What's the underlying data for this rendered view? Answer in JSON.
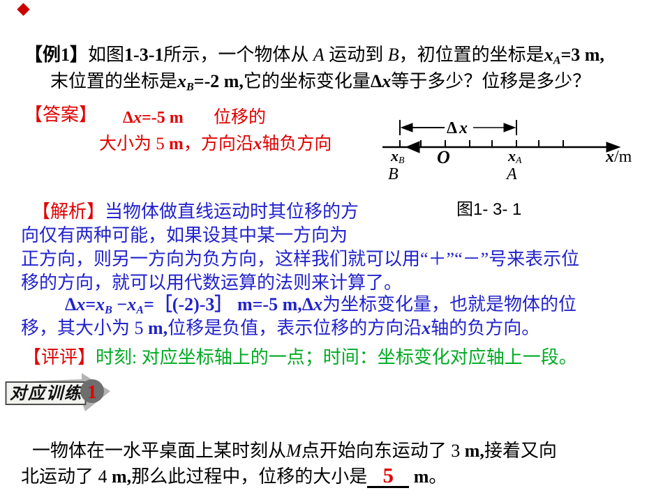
{
  "colors": {
    "red": "#e00000",
    "blue": "#2222cc",
    "green": "#00aa22",
    "diamond": "#cc0000",
    "banner_arrow": "#b4b4b4",
    "banner_box_fill": "#f2f2ee",
    "banner_box_border": "#4d4d4d",
    "banner_circle": "#6e6e6e"
  },
  "example": {
    "line1_runs": [
      {
        "t": "【例1】",
        "c": "b"
      },
      {
        "t": "如图"
      },
      {
        "t": "1-3-1",
        "c": "b"
      },
      {
        "t": "所示，一个物体从 "
      },
      {
        "t": "A",
        "c": "i"
      },
      {
        "t": " 运动到 "
      },
      {
        "t": "B",
        "c": "i"
      },
      {
        "t": "，初位置的坐标是"
      },
      {
        "t": "x",
        "c": "bi"
      },
      {
        "t": "A",
        "c": "subi"
      },
      {
        "t": "=3 m,",
        "c": "b"
      }
    ],
    "line2_runs": [
      {
        "t": "末位置的坐标是"
      },
      {
        "t": "x",
        "c": "bi"
      },
      {
        "t": "B",
        "c": "subi"
      },
      {
        "t": "=-2 m,",
        "c": "b"
      },
      {
        "t": "它的坐标变化量"
      },
      {
        "t": "Δ",
        "c": "b"
      },
      {
        "t": "x",
        "c": "bi"
      },
      {
        "t": "等于多少？位移是多少？"
      }
    ]
  },
  "answer": {
    "tag": "【答案】",
    "delta_runs": [
      {
        "t": "Δ",
        "c": "b"
      },
      {
        "t": "x",
        "c": "bi"
      },
      {
        "t": "=-5 m",
        "c": "b"
      }
    ],
    "label": "位移的",
    "line2_runs": [
      {
        "t": "大小为 5 "
      },
      {
        "t": "m",
        "c": "b"
      },
      {
        "t": "，方向沿"
      },
      {
        "t": "x",
        "c": "bi"
      },
      {
        "t": "轴负方向"
      }
    ]
  },
  "diagram": {
    "delta_symbol": "Δ",
    "delta_var": "x",
    "xB_base": "x",
    "xB_sub": "B",
    "origin": "O",
    "xA_base": "x",
    "xA_sub": "A",
    "axis_var": "x",
    "axis_unit": "/m",
    "point_B": "B",
    "point_A": "A",
    "caption": "图1- 3- 1"
  },
  "analysis": {
    "line1_runs": [
      {
        "t": "【解析】",
        "c": "red"
      },
      {
        "t": "当物体做直线运动时其位移的方"
      }
    ],
    "line2_runs": [
      {
        "t": "向仅有两种可能，如果设其中某一方向为"
      }
    ],
    "line3_runs": [
      {
        "t": "正方向，则另一方向为负方向，这样我们就可以用“＋”“－”号来表示位"
      }
    ],
    "line4_runs": [
      {
        "t": "移的方向，就可以用代数运算的法则来计算了。"
      }
    ],
    "line5_runs": [
      {
        "t": "Δ",
        "c": "b"
      },
      {
        "t": "x",
        "c": "bi"
      },
      {
        "t": "=",
        "c": "b"
      },
      {
        "t": "x",
        "c": "bi"
      },
      {
        "t": "B",
        "c": "subi"
      },
      {
        "t": " −",
        "c": "b"
      },
      {
        "t": "x",
        "c": "bi"
      },
      {
        "t": "A",
        "c": "subi"
      },
      {
        "t": "=",
        "c": "b"
      },
      {
        "t": "［(-2)-3］",
        "c": "b"
      },
      {
        "t": " m=-5 m,",
        "c": "b"
      },
      {
        "t": "Δ",
        "c": "b"
      },
      {
        "t": "x",
        "c": "bi"
      },
      {
        "t": "为坐标变化量，也就是物体的位"
      }
    ],
    "line6_runs": [
      {
        "t": "移，其大小为 5 "
      },
      {
        "t": "m,",
        "c": "b"
      },
      {
        "t": "位移是负值，表示位移的方向沿"
      },
      {
        "t": "x",
        "c": "bi"
      },
      {
        "t": "轴的负方向。"
      }
    ]
  },
  "comment": {
    "runs": [
      {
        "t": "【评评】",
        "c": "red"
      },
      {
        "t": "时刻: 对应坐标轴上的一点；时间：坐标变化对应轴上一段。",
        "c": "green"
      }
    ]
  },
  "banner": {
    "label": "对应训练",
    "number": "1"
  },
  "question": {
    "line1_runs": [
      {
        "t": "一物体在一水平桌面上某时刻从"
      },
      {
        "t": "M",
        "c": "i"
      },
      {
        "t": "点开始向东运动了 3 "
      },
      {
        "t": "m,",
        "c": "b"
      },
      {
        "t": "接着又向"
      }
    ],
    "line2_prefix_runs": [
      {
        "t": "北运动了 4 "
      },
      {
        "t": "m,",
        "c": "b"
      },
      {
        "t": "那么此过程中，位移的大小是"
      }
    ],
    "blank_value": "5",
    "line2_suffix_runs": [
      {
        "t": " m",
        "c": "b"
      },
      {
        "t": "。"
      }
    ]
  }
}
